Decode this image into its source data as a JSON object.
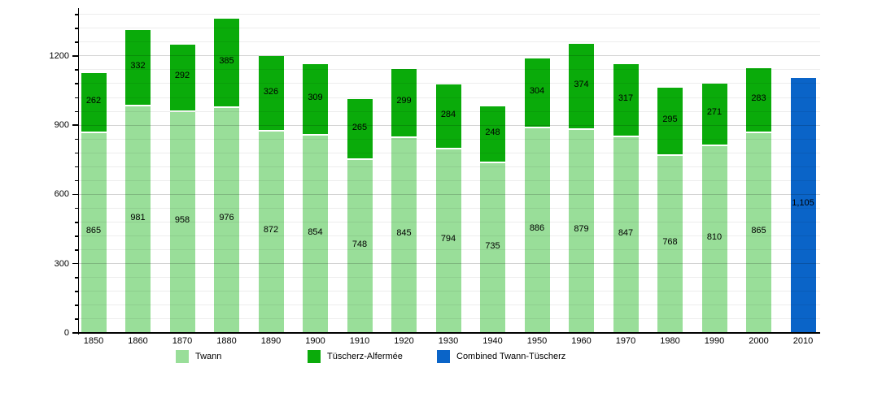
{
  "chart_data": {
    "type": "bar",
    "stacked": true,
    "title": "",
    "xlabel": "",
    "ylabel": "",
    "categories": [
      "1850",
      "1860",
      "1870",
      "1880",
      "1890",
      "1900",
      "1910",
      "1920",
      "1930",
      "1940",
      "1950",
      "1960",
      "1970",
      "1980",
      "1990",
      "2000",
      "2010"
    ],
    "series": [
      {
        "name": "Twann",
        "color": "#99DE99",
        "values": [
          865,
          981,
          958,
          976,
          872,
          854,
          748,
          845,
          794,
          735,
          886,
          879,
          847,
          768,
          810,
          865,
          null
        ]
      },
      {
        "name": "Tüscherz-Alfermée",
        "color": "#0AAB0A",
        "values": [
          262,
          332,
          292,
          385,
          326,
          309,
          265,
          299,
          284,
          248,
          304,
          374,
          317,
          295,
          271,
          283,
          null
        ]
      },
      {
        "name": "Combined Twann-Tüscherz",
        "color": "#0A64C8",
        "values": [
          null,
          null,
          null,
          null,
          null,
          null,
          null,
          null,
          null,
          null,
          null,
          null,
          null,
          null,
          null,
          null,
          1105
        ]
      }
    ],
    "value_labels_visible": true,
    "ylim": [
      0,
      1400
    ],
    "yticks": [
      0,
      300,
      600,
      900,
      1200
    ],
    "ytick_labels": [
      "0",
      "300",
      "600",
      "900",
      "1200"
    ],
    "minor_step": 60,
    "grid": true,
    "legend_position": "bottom",
    "background_color": "#FFFFFF",
    "axis_color": "#000000",
    "label_color": "#000000"
  }
}
